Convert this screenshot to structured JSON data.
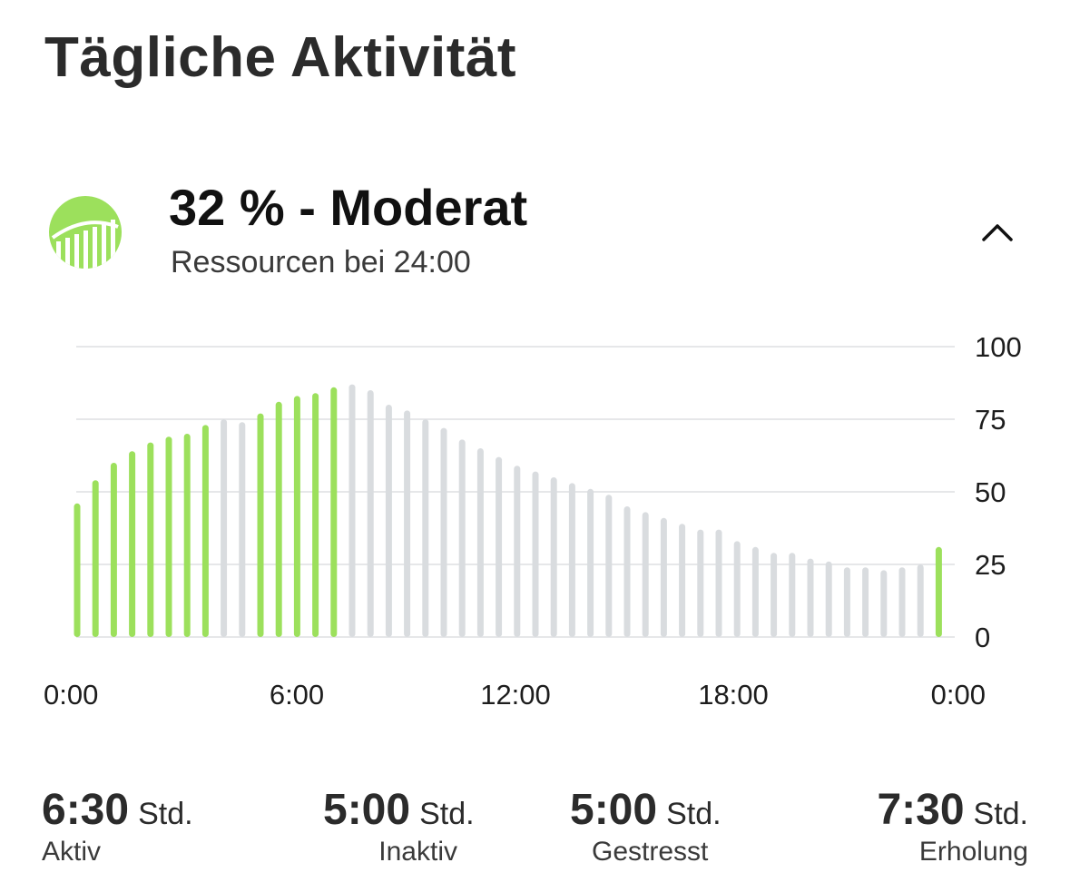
{
  "header": {
    "title": "Tägliche Aktivität"
  },
  "summary": {
    "value_text": "32 % - Moderat",
    "subtitle": "Ressourcen bei 24:00",
    "icon": "resources-gauge-icon",
    "toggle_icon": "chevron-up-icon",
    "accent_color": "#9ce05c"
  },
  "chart_data": {
    "type": "bar",
    "x_tick_labels": [
      "0:00",
      "6:00",
      "12:00",
      "18:00",
      "0:00"
    ],
    "y_tick_labels": [
      "100",
      "75",
      "50",
      "25",
      "0"
    ],
    "ylim": [
      0,
      100
    ],
    "grid": true,
    "colors": {
      "active": "#9ce05c",
      "inactive": "#d9dcdf"
    },
    "values": [
      46,
      54,
      60,
      64,
      67,
      69,
      70,
      73,
      75,
      74,
      77,
      81,
      83,
      84,
      86,
      87,
      85,
      80,
      78,
      75,
      72,
      68,
      65,
      62,
      59,
      57,
      55,
      53,
      51,
      49,
      45,
      43,
      41,
      39,
      37,
      37,
      33,
      31,
      29,
      29,
      27,
      26,
      24,
      24,
      23,
      24,
      25,
      31
    ],
    "active": [
      1,
      1,
      1,
      1,
      1,
      1,
      1,
      1,
      0,
      0,
      1,
      1,
      1,
      1,
      1,
      0,
      0,
      0,
      0,
      0,
      0,
      0,
      0,
      0,
      0,
      0,
      0,
      0,
      0,
      0,
      0,
      0,
      0,
      0,
      0,
      0,
      0,
      0,
      0,
      0,
      0,
      0,
      0,
      0,
      0,
      0,
      0,
      1
    ]
  },
  "stats": [
    {
      "value": "6:30",
      "unit": "Std.",
      "label": "Aktiv"
    },
    {
      "value": "5:00",
      "unit": "Std.",
      "label": "Inaktiv"
    },
    {
      "value": "5:00",
      "unit": "Std.",
      "label": "Gestresst"
    },
    {
      "value": "7:30",
      "unit": "Std.",
      "label": "Erholung"
    }
  ]
}
